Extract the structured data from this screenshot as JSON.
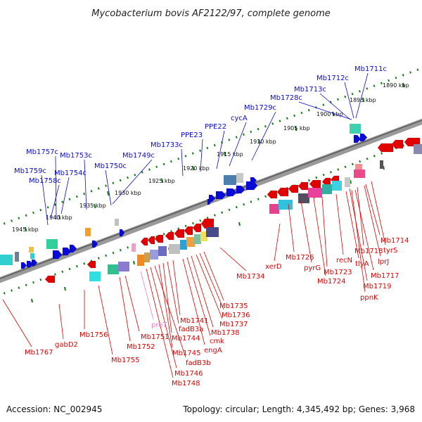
{
  "title": "Mycobacterium bovis AF2122/97, complete genome",
  "footer": {
    "accession": "Accession: NC_002945",
    "summary": "Topology: circular; Length: 4,345,492 bp; Genes: 3,968"
  },
  "colors": {
    "forward_gene": "#0a0ad8",
    "reverse_gene": "#e00000",
    "backbone": "#888888",
    "ruler": "#1b7a1b",
    "pseudo_label": "#f080c0"
  },
  "ruler_ticks": [
    "1890 kbp",
    "1895 kbp",
    "1900 kbp",
    "1905 kbp",
    "1910 kbp",
    "1915 kbp",
    "1920 kbp",
    "1925 kbp",
    "1930 kbp",
    "1935 kbp",
    "1940 kbp",
    "1945 kbp"
  ],
  "forward_labels": [
    "Mb1711c",
    "Mb1712c",
    "Mb1713c",
    "Mb1728c",
    "Mb1729c",
    "cycA",
    "PPE22",
    "PPE23",
    "Mb1733c",
    "Mb1749c",
    "Mb1750c",
    "Mb1753c",
    "Mb1754c",
    "Mb1757c",
    "Mb1758c",
    "Mb1759c"
  ],
  "reverse_labels": [
    "Mb1714",
    "tyrS",
    "lprJ",
    "Mb1718",
    "Mb1717",
    "tlyA",
    "Mb1719",
    "ppnK",
    "recN",
    "Mb1723",
    "Mb1724",
    "pyrG",
    "Mb1726",
    "xerD",
    "Mb1734",
    "Mb1735",
    "Mb1736",
    "Mb1737",
    "Mb1738",
    "cmk",
    "engA",
    "Mb1741",
    "fadB3a",
    "Mb1744",
    "Mb1745",
    "fadB3b",
    "Mb1746",
    "Mb1748",
    "proT",
    "Mb1751",
    "Mb1752",
    "Mb1755",
    "Mb1756",
    "gabD2",
    "Mb1767"
  ]
}
